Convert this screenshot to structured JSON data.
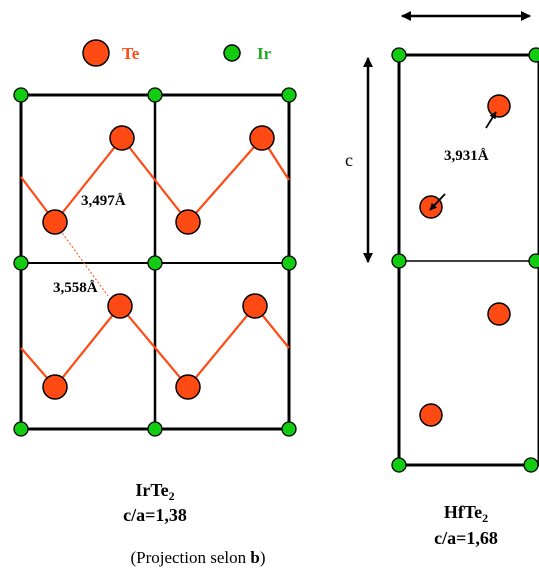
{
  "legend": {
    "te_label": "Te",
    "ir_label": "Ir"
  },
  "irte2": {
    "formula_main": "IrTe",
    "formula_sub": "2",
    "ratio": "c/a=1,38",
    "dist_short": "3,497Å",
    "dist_long": "3,558Å"
  },
  "hfte2": {
    "formula_main": "HfTe",
    "formula_sub": "2",
    "ratio": "c/a=1,68",
    "dist": "3,931Å",
    "axis_label": "c"
  },
  "caption": {
    "prefix": "(Projection selon ",
    "axis": "b",
    "suffix": ")"
  },
  "colors": {
    "te_fill": "#ff4a14",
    "ir_fill": "#11cc11",
    "te_text": "#ff4a14",
    "ir_text": "#22aa22",
    "bond": "#ff4a14",
    "frame": "#000000"
  }
}
